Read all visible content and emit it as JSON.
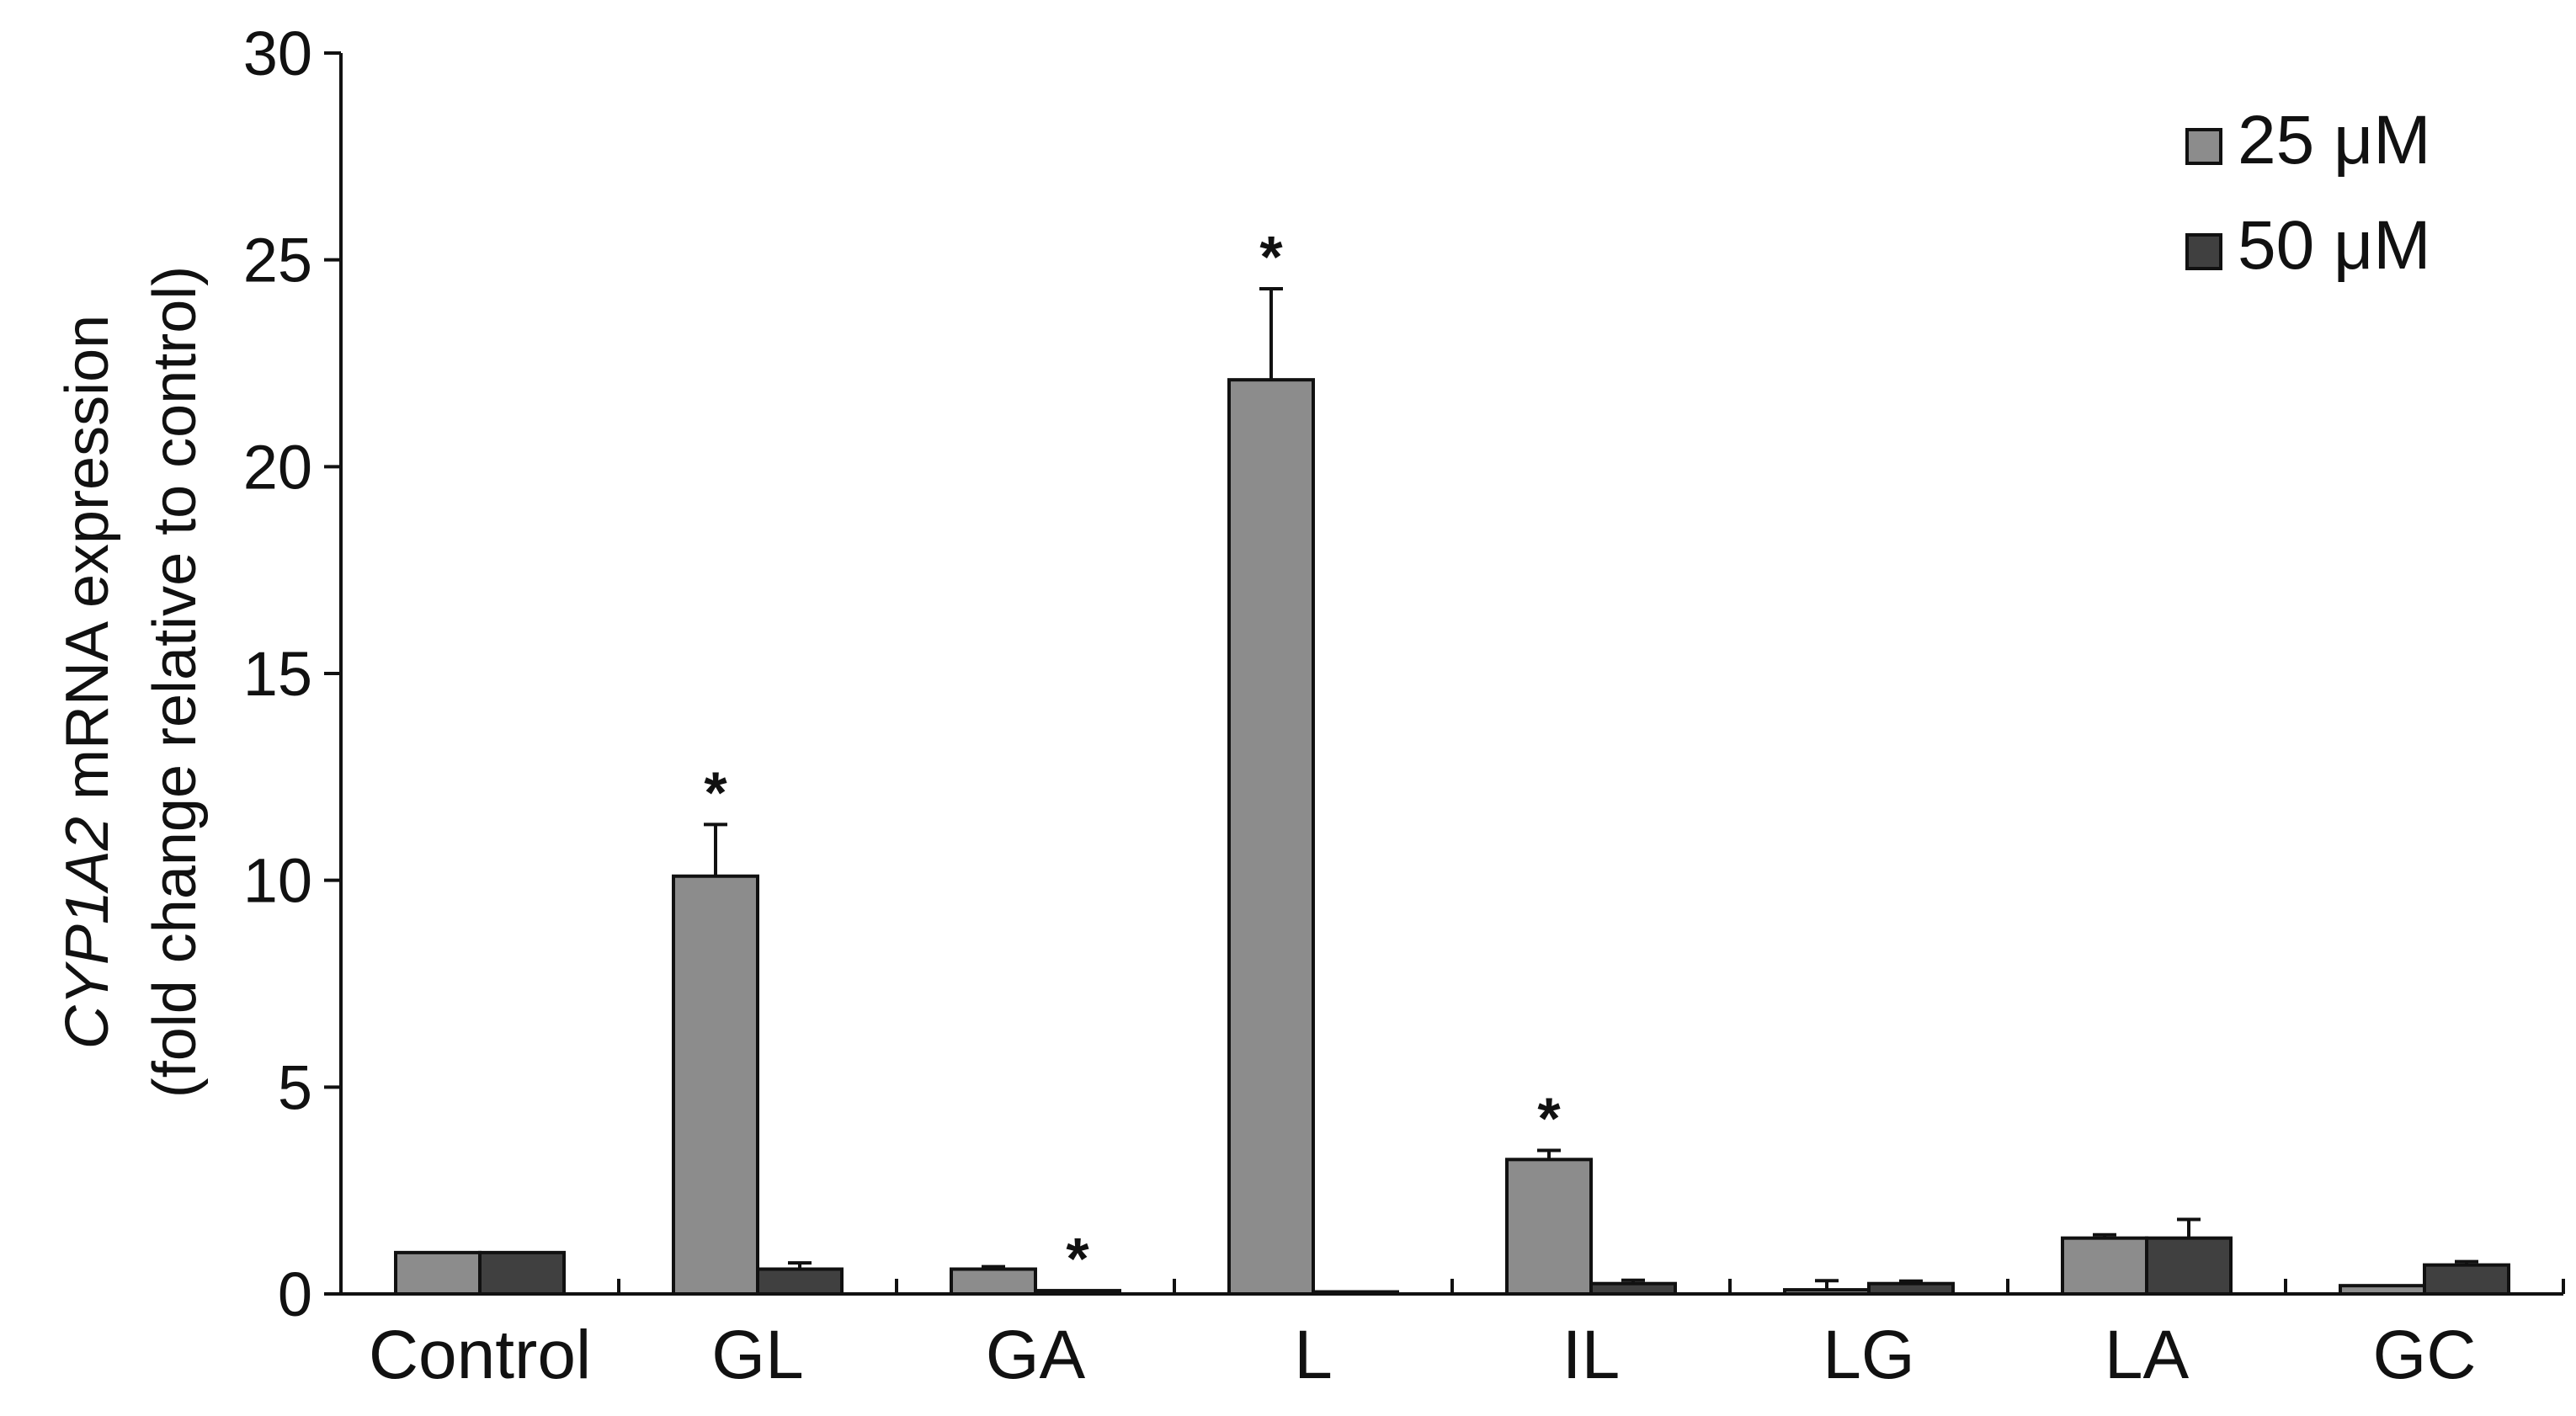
{
  "chart_data": {
    "type": "bar",
    "title": "",
    "xlabel": "",
    "ylabel_gene": "CYP1A2",
    "ylabel_rest": " mRNA expression",
    "ylabel_line2": "(fold change relative to control)",
    "ylim": [
      0,
      30
    ],
    "yticks": [
      0,
      5,
      10,
      15,
      20,
      25,
      30
    ],
    "grid": false,
    "legend_position": "top-right",
    "categories": [
      "Control",
      "GL",
      "GA",
      "L",
      "IL",
      "LG",
      "LA",
      "GC"
    ],
    "series": [
      {
        "name": "25 μM",
        "color": "#8c8c8c",
        "values": [
          1.0,
          10.1,
          0.6,
          22.1,
          3.25,
          0.1,
          1.35,
          0.2
        ],
        "errors": [
          0.0,
          1.25,
          0.06,
          2.2,
          0.22,
          0.22,
          0.08,
          0.0
        ],
        "significant": [
          false,
          true,
          false,
          true,
          true,
          false,
          false,
          false
        ]
      },
      {
        "name": "50 μM",
        "color": "#404040",
        "values": [
          1.0,
          0.6,
          0.08,
          0.05,
          0.25,
          0.25,
          1.35,
          0.7
        ],
        "errors": [
          0.0,
          0.15,
          0.0,
          0.0,
          0.08,
          0.06,
          0.45,
          0.08
        ],
        "significant": [
          false,
          false,
          true,
          false,
          false,
          false,
          false,
          false
        ]
      }
    ],
    "significance_marker": "*"
  }
}
